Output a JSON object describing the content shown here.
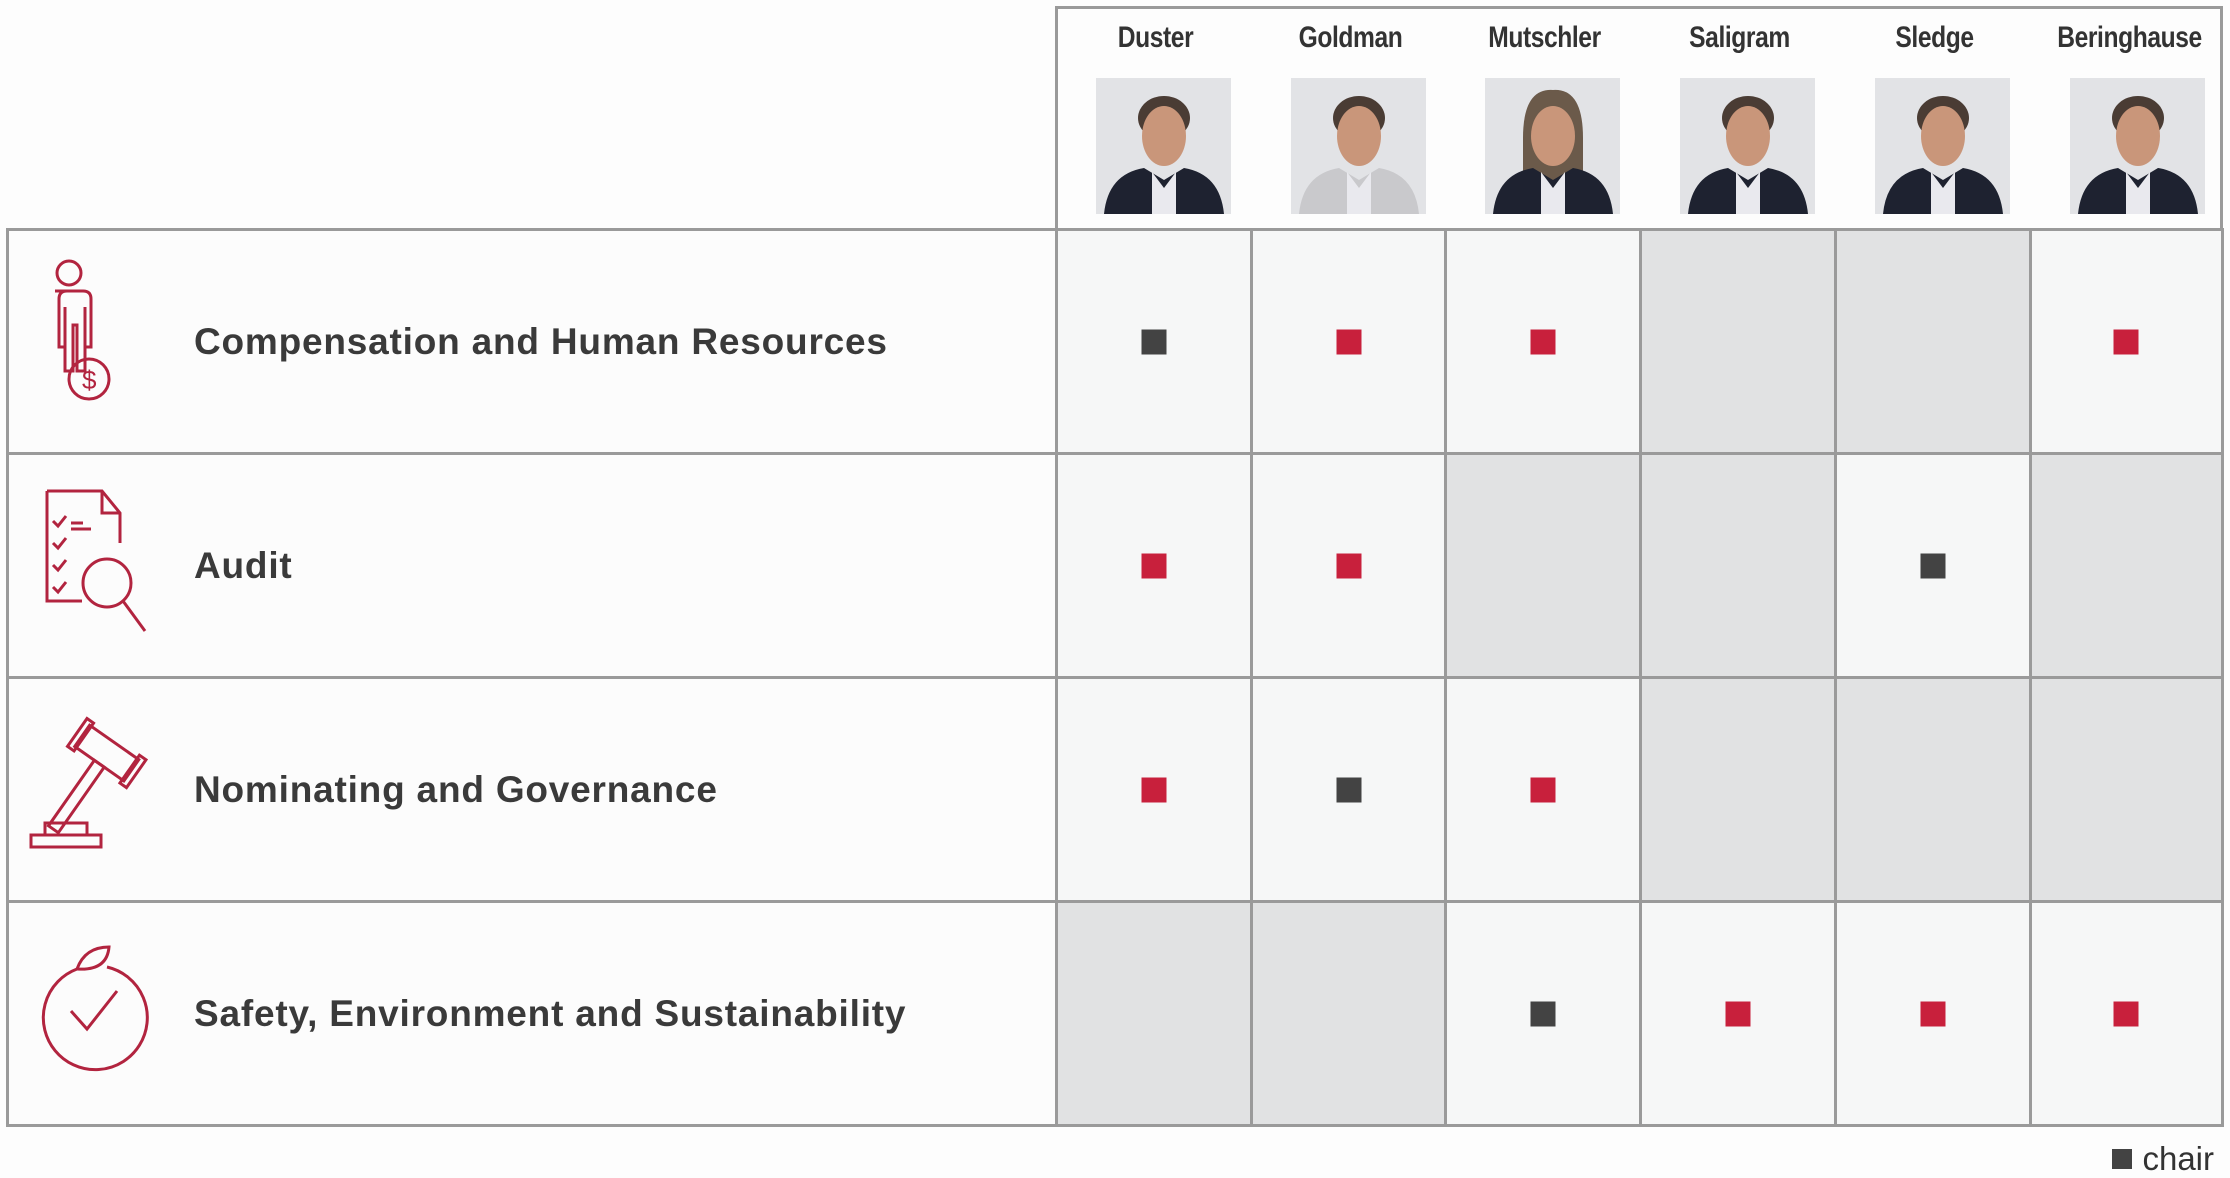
{
  "colors": {
    "member": "#c8203c",
    "chair": "#434343",
    "icon": "#b2243f",
    "no_membership_cell": "#e1e2e3"
  },
  "members": [
    {
      "name": "Duster",
      "photo": "portrait-man-dark-suit"
    },
    {
      "name": "Goldman",
      "photo": "portrait-man-checked-shirt"
    },
    {
      "name": "Mutschler",
      "photo": "portrait-woman-dark-jacket"
    },
    {
      "name": "Saligram",
      "photo": "portrait-man-dark-suit"
    },
    {
      "name": "Sledge",
      "photo": "portrait-man-dark-suit"
    },
    {
      "name": "Beringhause",
      "photo": "portrait-man-dark-suit"
    }
  ],
  "committees": [
    {
      "name": "Compensation and Human Resources",
      "icon": "person-dollar-icon",
      "membership": [
        "chair",
        "member",
        "member",
        "",
        "",
        "member"
      ]
    },
    {
      "name": "Audit",
      "icon": "checklist-magnifier-icon",
      "membership": [
        "member",
        "member",
        "",
        "",
        "chair",
        ""
      ]
    },
    {
      "name": "Nominating and Governance",
      "icon": "gavel-icon",
      "membership": [
        "member",
        "chair",
        "member",
        "",
        "",
        ""
      ]
    },
    {
      "name": "Safety, Environment and Sustainability",
      "icon": "leaf-check-icon",
      "membership": [
        "",
        "",
        "chair",
        "member",
        "member",
        "member"
      ]
    }
  ],
  "legend": {
    "label": "chair"
  }
}
